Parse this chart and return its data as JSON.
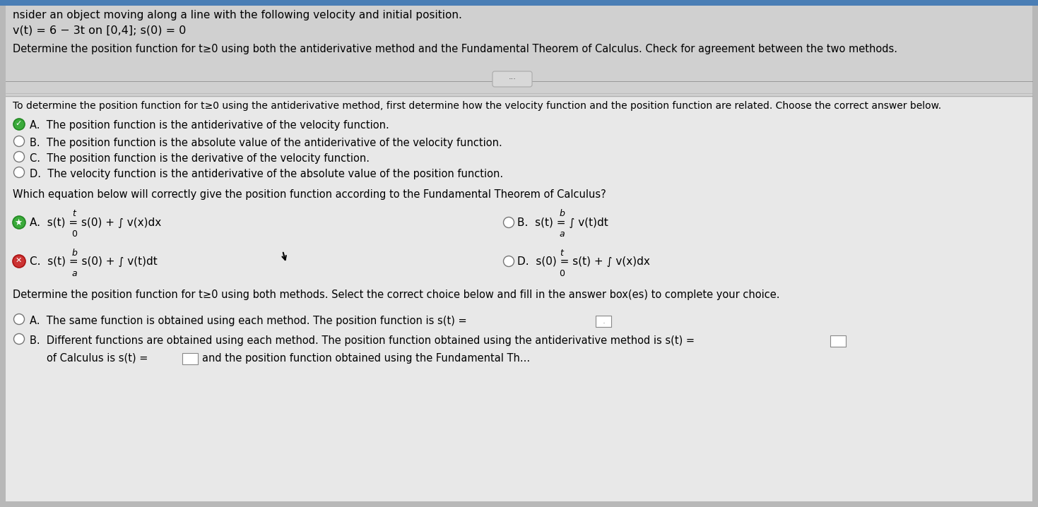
{
  "bg_color": "#c8c8c8",
  "content_bg": "#e0e0e0",
  "top_section_bg": "#d4d4d4",
  "white_bg": "#f0f0f0",
  "line1": "nsider an object moving along a line with the following velocity and initial position.",
  "line2": "v(t) = 6 − 3t on [0,4]; s(0) = 0",
  "line3": "Determine the position function for t≥0 using both the antiderivative method and the Fundamental Theorem of Calculus. Check for agreement between the two methods.",
  "q1_intro": "To determine the position function for t≥0 using the antiderivative method, first determine how the velocity function and the position function are related. Choose the correct answer below.",
  "optA": "A.  The position function is the antiderivative of the velocity function.",
  "optB": "B.  The position function is the absolute value of the antiderivative of the velocity function.",
  "optC": "C.  The position function is the derivative of the velocity function.",
  "optD": "D.  The velocity function is the antiderivative of the absolute value of the position function.",
  "q2_intro": "Which equation below will correctly give the position function according to the Fundamental Theorem of Calculus?",
  "q3_intro": "Determine the position function for t≥0 using both methods. Select the correct choice below and fill in the answer box(es) to complete your choice.",
  "choiceA": "A.  The same function is obtained using each method. The position function is s(t) =",
  "choiceB1": "B.  Different functions are obtained using each method. The position function obtained using the antiderivative method is s(t) =",
  "choiceB2": "        of Calculus is s(t) =",
  "choiceB3": "and the position function obtained using the Fundamental Th..."
}
